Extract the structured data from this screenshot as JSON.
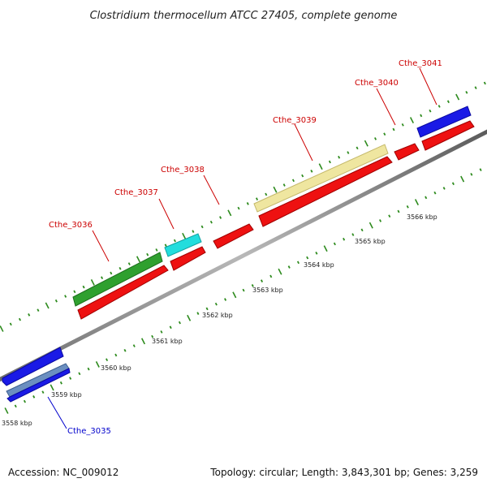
{
  "title": "Clostridium thermocellum ATCC 27405, complete genome",
  "footer": {
    "accession": "Accession: NC_009012",
    "topology": "Topology: circular; Length: 3,843,301 bp; Genes: 3,259"
  },
  "kbp_labels": [
    "3558 kbp",
    "3559 kbp",
    "3560 kbp",
    "3561 kbp",
    "3562 kbp",
    "3563 kbp",
    "3564 kbp",
    "3565 kbp",
    "3566 kbp"
  ],
  "gene_labels": [
    "Cthe_3035",
    "Cthe_3036",
    "Cthe_3037",
    "Cthe_3038",
    "Cthe_3039",
    "Cthe_3040",
    "Cthe_3041"
  ],
  "colors": {
    "backbone": "#8a8a8a",
    "tick": "#2e8b1e",
    "forward_gene_label": "#cc0000",
    "reverse_gene_label": "#0000cc",
    "cds_red": "#ee1111",
    "green_feature": "#2fa02f",
    "cyan_feature": "#22dddd",
    "khaki_feature": "#efe6a0",
    "blue_feature": "#1a1ae6",
    "steel_feature": "#6b8fc0"
  }
}
